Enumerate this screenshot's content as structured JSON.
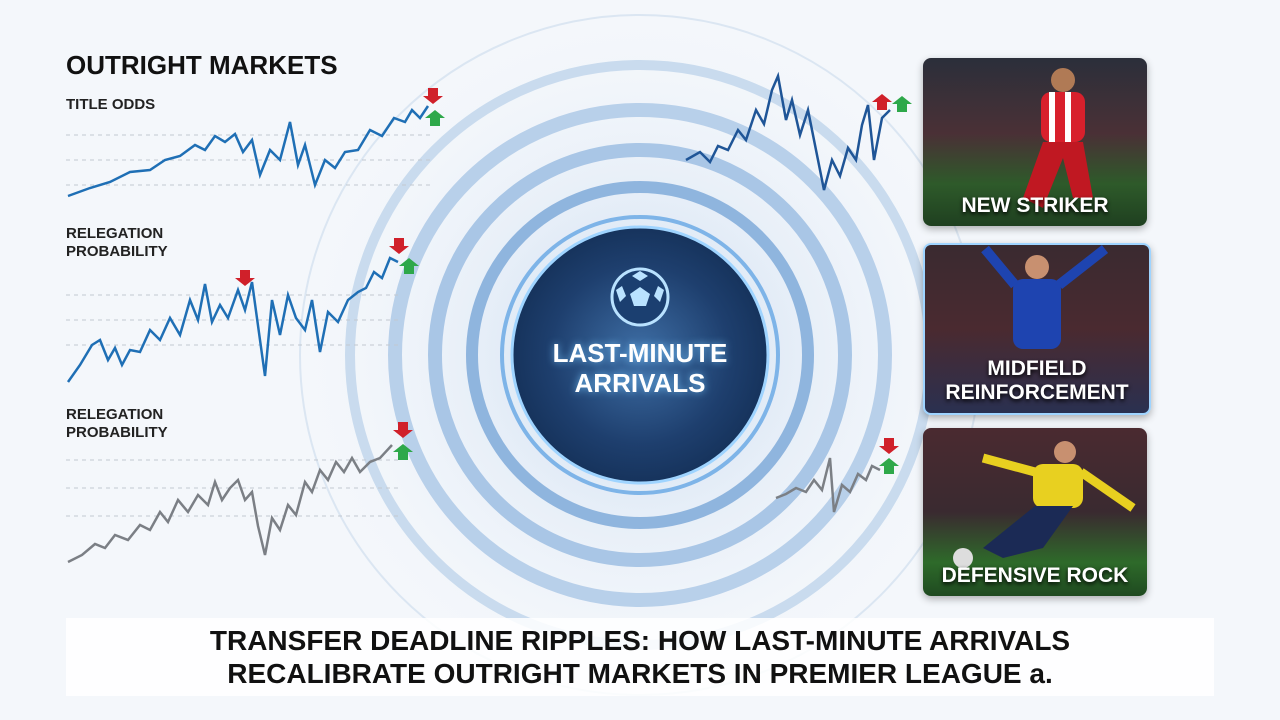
{
  "heading": "OUTRIGHT MARKETS",
  "panels": [
    {
      "label": "TITLE ODDS"
    },
    {
      "label": "RELEGATION PROBABILITY"
    },
    {
      "label": "RELEGATION PROBABILITY"
    }
  ],
  "center": {
    "label": "LAST-MINUTE ARRIVALS"
  },
  "cards": [
    {
      "caption": "NEW STRIKER"
    },
    {
      "caption": "MIDFIELD REINFORCEMENT"
    },
    {
      "caption": "DEFENSIVE ROCK"
    }
  ],
  "footer": {
    "title": "TRANSFER DEADLINE RIPPLES: HOW LAST-MINUTE ARRIVALS RECALIBRATE OUTRIGHT MARKETS IN PREMIER LEAGUE a."
  }
}
